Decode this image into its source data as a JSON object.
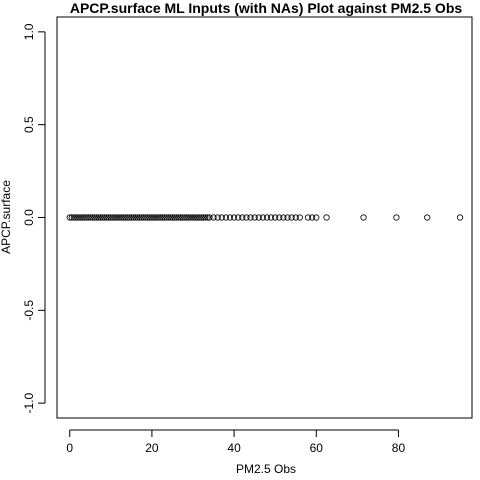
{
  "chart_data": {
    "type": "scatter",
    "title": "APCP.surface ML Inputs (with NAs) Plot against PM2.5 Obs",
    "xlabel": "PM2.5 Obs",
    "ylabel": "APCP.surface",
    "x": [
      0,
      0.5,
      1,
      1.5,
      2,
      2.5,
      3,
      3.5,
      4,
      4.5,
      5,
      5.5,
      6,
      6.5,
      7,
      7.5,
      8,
      8.5,
      9,
      9.5,
      10,
      10.5,
      11,
      11.5,
      12,
      12.5,
      13,
      13.5,
      14,
      14.5,
      15,
      15.5,
      16,
      16.5,
      17,
      17.5,
      18,
      18.5,
      19,
      19.5,
      20,
      20.5,
      21,
      21.5,
      22,
      22.5,
      23,
      23.5,
      24,
      24.5,
      25,
      25.5,
      26,
      26.5,
      27,
      27.5,
      28,
      28.5,
      29,
      29.5,
      30,
      30.5,
      31,
      31.5,
      32,
      32.5,
      33,
      33.5,
      34,
      35,
      36,
      37,
      38,
      39,
      40,
      41,
      42,
      43,
      44,
      45,
      46,
      47,
      48,
      49,
      50,
      51,
      52,
      53,
      54,
      55,
      56,
      58,
      59,
      60,
      62.5,
      71.5,
      79.5,
      87,
      95
    ],
    "values": [
      0,
      0,
      0,
      0,
      0,
      0,
      0,
      0,
      0,
      0,
      0,
      0,
      0,
      0,
      0,
      0,
      0,
      0,
      0,
      0,
      0,
      0,
      0,
      0,
      0,
      0,
      0,
      0,
      0,
      0,
      0,
      0,
      0,
      0,
      0,
      0,
      0,
      0,
      0,
      0,
      0,
      0,
      0,
      0,
      0,
      0,
      0,
      0,
      0,
      0,
      0,
      0,
      0,
      0,
      0,
      0,
      0,
      0,
      0,
      0,
      0,
      0,
      0,
      0,
      0,
      0,
      0,
      0,
      0,
      0,
      0,
      0,
      0,
      0,
      0,
      0,
      0,
      0,
      0,
      0,
      0,
      0,
      0,
      0,
      0,
      0,
      0,
      0,
      0,
      0,
      0,
      0,
      0,
      0,
      0,
      0,
      0,
      0,
      0
    ],
    "color": "#000000",
    "xlim": [
      -3.1,
      97.9
    ],
    "xticks": [
      0,
      20,
      40,
      60,
      80
    ],
    "ylim": [
      -1.08,
      1.08
    ],
    "yticks": [
      {
        "value": -1,
        "label": "-1.0"
      },
      {
        "value": -0.5,
        "label": "-0.5"
      },
      {
        "value": 0,
        "label": "0.0"
      },
      {
        "value": 0.5,
        "label": "0.5"
      },
      {
        "value": 1,
        "label": "1.0"
      }
    ]
  }
}
